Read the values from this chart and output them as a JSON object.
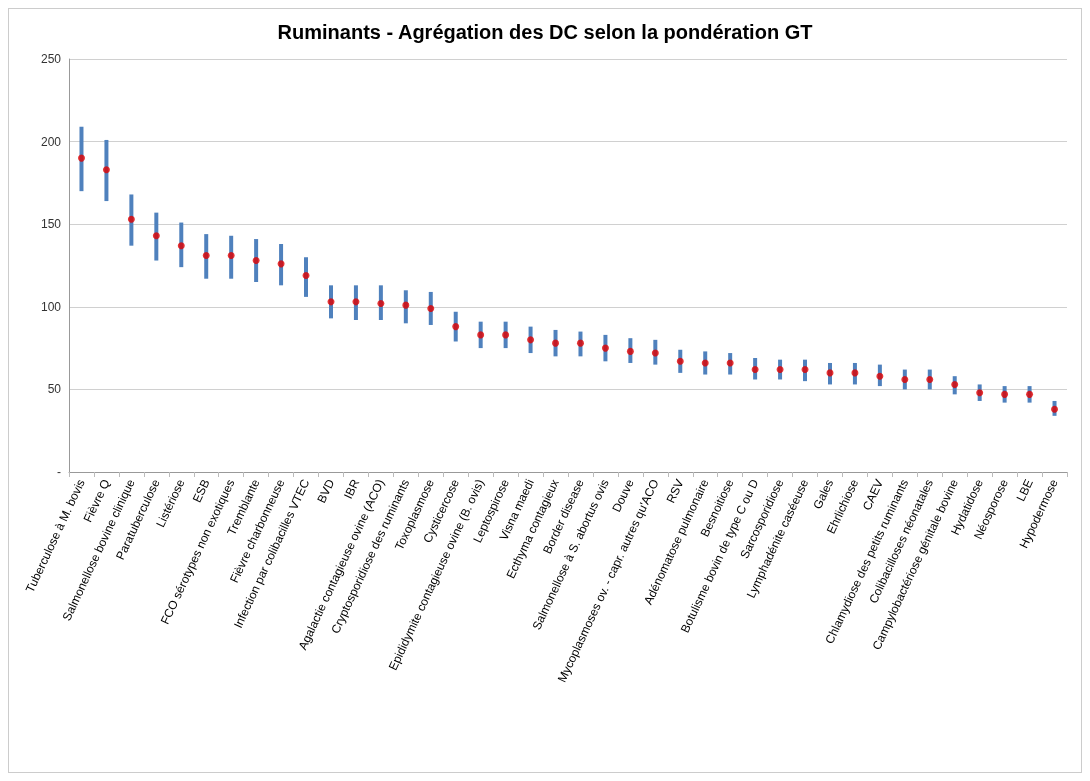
{
  "chart_data": {
    "type": "scatter",
    "title": "Ruminants - Agrégation des DC selon la pondération GT",
    "categories": [
      "Tuberculose à M. bovis",
      "Fièvre Q",
      "Salmonellose bovine clinique",
      "Paratuberculose",
      "Listériose",
      "ESB",
      "FCO sérotypes non exotiques",
      "Tremblante",
      "Fièvre charbonneuse",
      "Infection par colibacilles VTEC",
      "BVD",
      "IBR",
      "Agalactie contagieuse ovine (ACO)",
      "Cryptosporidiose des ruminants",
      "Toxoplasmose",
      "Cysticercose",
      "Epididymite contagieuse ovine (B. ovis)",
      "Leptospirose",
      "Visna maedi",
      "Ecthyma contagieux",
      "Border disease",
      "Salmonellose à S. abortus ovis",
      "Douve",
      "Mycoplasmoses ov. - capr. autres qu'ACO",
      "RSV",
      "Adénomatose pulmonaire",
      "Besnoitiose",
      "Botulisme bovin de type C ou D",
      "Sarcosporidiose",
      "Lymphadénite caséeuse",
      "Gales",
      "Ehrlichiose",
      "CAEV",
      "Chlamydiose des petits ruminants",
      "Colibacilloses néonatales",
      "Campylobactériose génitale bovine",
      "Hydatidose",
      "Néosporose",
      "LBE",
      "Hypodermose"
    ],
    "series": [
      {
        "color": "#e00000",
        "values": [
          190,
          183,
          153,
          143,
          137,
          131,
          131,
          128,
          126,
          119,
          103,
          103,
          102,
          101,
          99,
          88,
          83,
          83,
          80,
          78,
          78,
          75,
          73,
          72,
          67,
          66,
          66,
          62,
          62,
          62,
          60,
          60,
          58,
          56,
          56,
          53,
          48,
          47,
          47,
          38
        ],
        "errors": [
          [
            170,
            209
          ],
          [
            164,
            201
          ],
          [
            137,
            168
          ],
          [
            128,
            157
          ],
          [
            124,
            151
          ],
          [
            117,
            144
          ],
          [
            117,
            143
          ],
          [
            115,
            141
          ],
          [
            113,
            138
          ],
          [
            106,
            130
          ],
          [
            93,
            113
          ],
          [
            92,
            113
          ],
          [
            92,
            113
          ],
          [
            90,
            110
          ],
          [
            89,
            109
          ],
          [
            79,
            97
          ],
          [
            75,
            91
          ],
          [
            75,
            91
          ],
          [
            72,
            88
          ],
          [
            70,
            86
          ],
          [
            70,
            85
          ],
          [
            67,
            83
          ],
          [
            66,
            81
          ],
          [
            65,
            80
          ],
          [
            60,
            74
          ],
          [
            59,
            73
          ],
          [
            59,
            72
          ],
          [
            56,
            69
          ],
          [
            56,
            68
          ],
          [
            55,
            68
          ],
          [
            53,
            66
          ],
          [
            53,
            66
          ],
          [
            52,
            65
          ],
          [
            50,
            62
          ],
          [
            50,
            62
          ],
          [
            47,
            58
          ],
          [
            43,
            53
          ],
          [
            42,
            52
          ],
          [
            42,
            52
          ],
          [
            34,
            43
          ]
        ]
      }
    ],
    "ylim": [
      0,
      250
    ],
    "yticks": [
      {
        "value": 0,
        "label": "-"
      },
      50,
      100,
      150,
      200,
      250
    ],
    "grid": "y",
    "marker": "circle"
  }
}
